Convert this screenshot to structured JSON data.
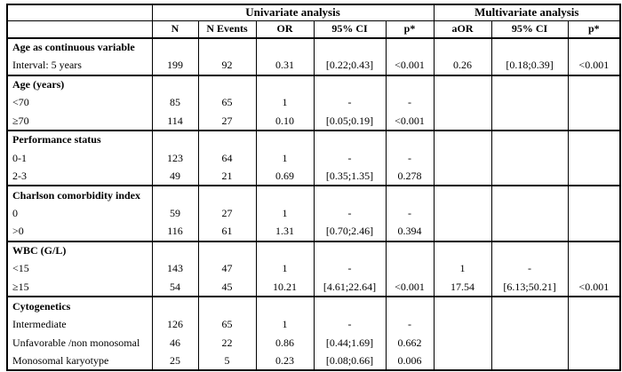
{
  "table": {
    "header": {
      "group_univariate": "Univariate analysis",
      "group_multivariate": "Multivariate analysis",
      "columns": [
        "N",
        "N Events",
        "OR",
        "95% CI",
        "p*",
        "aOR",
        "95% CI",
        "p*"
      ]
    },
    "rows": [
      {
        "label": "Age as continuous variable",
        "type": "section",
        "cells": [
          "",
          "",
          "",
          "",
          "",
          "",
          "",
          ""
        ]
      },
      {
        "label": "Interval: 5 years",
        "type": "data",
        "cells": [
          "199",
          "92",
          "0.31",
          "[0.22;0.43]",
          "<0.001",
          "0.26",
          "[0.18;0.39]",
          "<0.001"
        ]
      },
      {
        "label": "Age (years)",
        "type": "section",
        "cells": [
          "",
          "",
          "",
          "",
          "",
          "",
          "",
          ""
        ]
      },
      {
        "label": "<70",
        "type": "data",
        "cells": [
          "85",
          "65",
          "1",
          "-",
          "-",
          "",
          "",
          ""
        ]
      },
      {
        "label": "≥70",
        "type": "data",
        "cells": [
          "114",
          "27",
          "0.10",
          "[0.05;0.19]",
          "<0.001",
          "",
          "",
          ""
        ]
      },
      {
        "label": "Performance status",
        "type": "section",
        "cells": [
          "",
          "",
          "",
          "",
          "",
          "",
          "",
          ""
        ]
      },
      {
        "label": "0-1",
        "type": "data",
        "cells": [
          "123",
          "64",
          "1",
          "-",
          "-",
          "",
          "",
          ""
        ]
      },
      {
        "label": "2-3",
        "type": "data",
        "cells": [
          "49",
          "21",
          "0.69",
          "[0.35;1.35]",
          "0.278",
          "",
          "",
          ""
        ]
      },
      {
        "label": "Charlson comorbidity index",
        "type": "section",
        "cells": [
          "",
          "",
          "",
          "",
          "",
          "",
          "",
          ""
        ]
      },
      {
        "label": "0",
        "type": "data",
        "cells": [
          "59",
          "27",
          "1",
          "-",
          "-",
          "",
          "",
          ""
        ]
      },
      {
        "label": ">0",
        "type": "data",
        "cells": [
          "116",
          "61",
          "1.31",
          "[0.70;2.46]",
          "0.394",
          "",
          "",
          ""
        ]
      },
      {
        "label": "WBC (G/L)",
        "type": "section",
        "cells": [
          "",
          "",
          "",
          "",
          "",
          "",
          "",
          ""
        ]
      },
      {
        "label": "<15",
        "type": "data",
        "cells": [
          "143",
          "47",
          "1",
          "-",
          "",
          "1",
          "-",
          ""
        ]
      },
      {
        "label": "≥15",
        "type": "data",
        "cells": [
          "54",
          "45",
          "10.21",
          "[4.61;22.64]",
          "<0.001",
          "17.54",
          "[6.13;50.21]",
          "<0.001"
        ]
      },
      {
        "label": "Cytogenetics",
        "type": "section",
        "cells": [
          "",
          "",
          "",
          "",
          "",
          "",
          "",
          ""
        ]
      },
      {
        "label": "Intermediate",
        "type": "data",
        "cells": [
          "126",
          "65",
          "1",
          "-",
          "-",
          "",
          "",
          ""
        ]
      },
      {
        "label": "Unfavorable /non monosomal",
        "type": "data",
        "cells": [
          "46",
          "22",
          "0.86",
          "[0.44;1.69]",
          "0.662",
          "",
          "",
          ""
        ]
      },
      {
        "label": "Monosomal karyotype",
        "type": "data",
        "cells": [
          "25",
          "5",
          "0.23",
          "[0.08;0.66]",
          "0.006",
          "",
          "",
          ""
        ]
      }
    ]
  }
}
